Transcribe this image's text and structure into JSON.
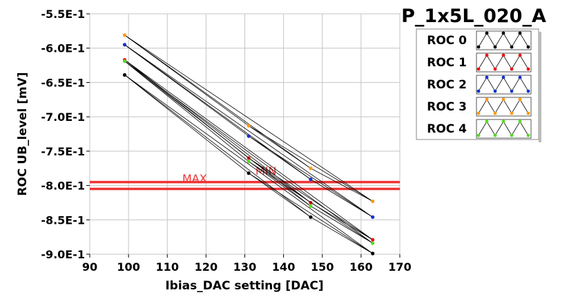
{
  "title": "P_1x5L_020_A",
  "chart_data": {
    "type": "line",
    "xlabel": "Ibias_DAC setting [DAC]",
    "ylabel": "ROC UB_level [mV]",
    "xlim": [
      90,
      170
    ],
    "ylim": [
      -0.9,
      -0.55
    ],
    "xticks": [
      90,
      100,
      110,
      120,
      130,
      140,
      150,
      160,
      170
    ],
    "yticks": [
      -0.55,
      -0.6,
      -0.65,
      -0.7,
      -0.75,
      -0.8,
      -0.85,
      -0.9
    ],
    "ytick_labels": [
      "-5.5E-1",
      "-6.0E-1",
      "-6.5E-1",
      "-7.0E-1",
      "-7.5E-1",
      "-8.0E-1",
      "-8.5E-1",
      "-9.0E-1"
    ],
    "grid": true,
    "legend_position": "right",
    "series": [
      {
        "name": "ROC 0",
        "color": "#000000",
        "x": [
          99,
          131,
          147,
          163
        ],
        "y": [
          -0.639,
          -0.782,
          -0.846,
          -0.899
        ]
      },
      {
        "name": "ROC 1",
        "color": "#ee1111",
        "x": [
          99,
          131,
          147,
          163
        ],
        "y": [
          -0.617,
          -0.76,
          -0.825,
          -0.879
        ]
      },
      {
        "name": "ROC 2",
        "color": "#1133cc",
        "x": [
          99,
          131,
          147,
          163
        ],
        "y": [
          -0.595,
          -0.728,
          -0.791,
          -0.846
        ]
      },
      {
        "name": "ROC 3",
        "color": "#ff9911",
        "x": [
          99,
          131,
          147,
          163
        ],
        "y": [
          -0.581,
          -0.713,
          -0.775,
          -0.823
        ]
      },
      {
        "name": "ROC 4",
        "color": "#55dd22",
        "x": [
          99,
          131,
          147,
          163
        ],
        "y": [
          -0.619,
          -0.765,
          -0.83,
          -0.884
        ]
      }
    ],
    "reference_lines": [
      {
        "label": "MAX",
        "y": -0.795,
        "color": "#ee3333"
      },
      {
        "label": "MIN",
        "y": -0.805,
        "color": "#ee3333"
      }
    ]
  }
}
